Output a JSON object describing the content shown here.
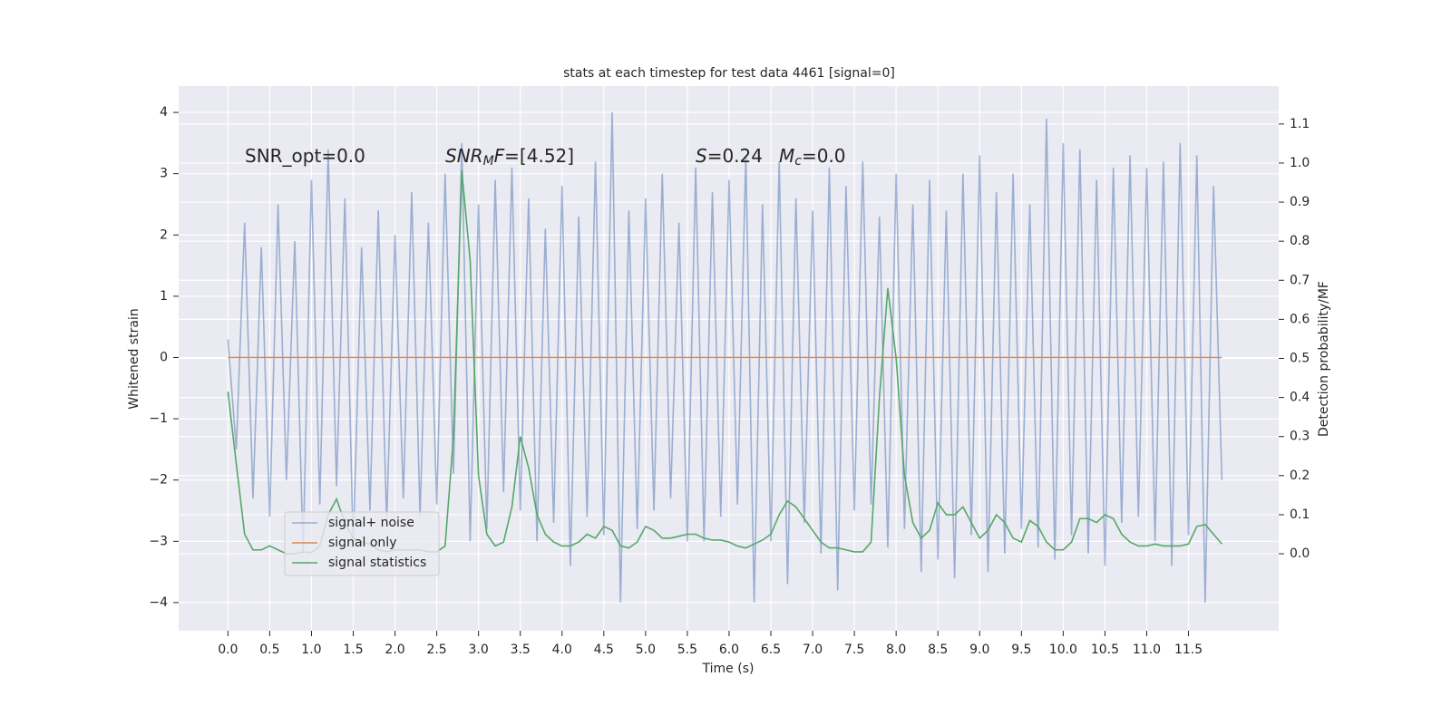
{
  "chart_data": {
    "type": "line",
    "title": "stats at each timestep for test data 4461 [signal=0]",
    "xlabel": "Time (s)",
    "ylabel": "Whitened strain",
    "y2label": "Detection probability/MF",
    "annotations": [
      [
        {
          "text": "SNR_opt=0.0"
        }
      ],
      [
        {
          "text": "SNR",
          "style": "italic"
        },
        {
          "text": "M",
          "style": "sub"
        },
        {
          "text": "F",
          "style": "italic"
        },
        {
          "text": "=[4.52]"
        }
      ],
      [
        {
          "text": "S",
          "style": "italic"
        },
        {
          "text": "=0.24"
        }
      ],
      [
        {
          "text": "M",
          "style": "italic"
        },
        {
          "text": "c",
          "style": "sub"
        },
        {
          "text": "=0.0"
        }
      ]
    ],
    "x": [
      0,
      0.1,
      0.2,
      0.3,
      0.4,
      0.5,
      0.6,
      0.7,
      0.8,
      0.9,
      1,
      1.1,
      1.2,
      1.3,
      1.4,
      1.5,
      1.6,
      1.7,
      1.8,
      1.9,
      2,
      2.1,
      2.2,
      2.3,
      2.4,
      2.5,
      2.6,
      2.7,
      2.8,
      2.9,
      3,
      3.1,
      3.2,
      3.3,
      3.4,
      3.5,
      3.6,
      3.7,
      3.8,
      3.9,
      4,
      4.1,
      4.2,
      4.3,
      4.4,
      4.5,
      4.6,
      4.7,
      4.8,
      4.9,
      5,
      5.1,
      5.2,
      5.3,
      5.4,
      5.5,
      5.6,
      5.7,
      5.8,
      5.9,
      6,
      6.1,
      6.2,
      6.3,
      6.4,
      6.5,
      6.6,
      6.7,
      6.8,
      6.9,
      7,
      7.1,
      7.2,
      7.3,
      7.4,
      7.5,
      7.6,
      7.7,
      7.8,
      7.9,
      8,
      8.1,
      8.2,
      8.3,
      8.4,
      8.5,
      8.6,
      8.7,
      8.8,
      8.9,
      9,
      9.1,
      9.2,
      9.3,
      9.4,
      9.5,
      9.6,
      9.7,
      9.8,
      9.9,
      10,
      10.1,
      10.2,
      10.3,
      10.4,
      10.5,
      10.6,
      10.7,
      10.8,
      10.9,
      11,
      11.1,
      11.2,
      11.3,
      11.4,
      11.5,
      11.6,
      11.7,
      11.8,
      11.9
    ],
    "series": [
      {
        "name": "signal+ noise",
        "color": "#4c72b0",
        "opacity": 0.5,
        "values": [
          0.3,
          -1.5,
          2.2,
          -2.3,
          1.8,
          -2.6,
          2.5,
          -2.0,
          1.9,
          -3.2,
          2.9,
          -2.4,
          3.4,
          -2.1,
          2.6,
          -3.1,
          1.8,
          -2.5,
          2.4,
          -2.7,
          2.0,
          -2.3,
          2.7,
          -2.6,
          2.2,
          -2.4,
          3.0,
          -1.9,
          3.5,
          -3.0,
          2.5,
          -2.8,
          2.9,
          -2.2,
          3.1,
          -2.5,
          2.6,
          -3.0,
          2.1,
          -2.7,
          2.8,
          -3.4,
          2.3,
          -2.6,
          3.2,
          -2.9,
          4.0,
          -4.0,
          2.4,
          -2.8,
          2.6,
          -2.5,
          3.0,
          -2.3,
          2.2,
          -3.0,
          3.1,
          -3.0,
          2.7,
          -2.6,
          2.9,
          -2.4,
          3.3,
          -4.0,
          2.5,
          -3.0,
          3.2,
          -3.7,
          2.6,
          -2.7,
          2.4,
          -3.2,
          3.1,
          -3.8,
          2.8,
          -2.5,
          3.2,
          -2.4,
          2.3,
          -3.1,
          3.0,
          -2.8,
          2.5,
          -3.5,
          2.9,
          -3.3,
          2.4,
          -3.6,
          3.0,
          -2.9,
          3.3,
          -3.5,
          2.7,
          -3.2,
          3.0,
          -2.8,
          2.5,
          -3.1,
          3.9,
          -3.3,
          3.5,
          -2.9,
          3.4,
          -3.2,
          2.9,
          -3.4,
          3.1,
          -2.7,
          3.3,
          -2.6,
          3.1,
          -3.0,
          3.2,
          -3.4,
          3.5,
          -2.9,
          3.3,
          -4.0,
          2.8,
          -2.0
        ]
      },
      {
        "name": "signal only",
        "color": "#dd8452",
        "opacity": 1,
        "values": [
          0,
          0,
          0,
          0,
          0,
          0,
          0,
          0,
          0,
          0,
          0,
          0,
          0,
          0,
          0,
          0,
          0,
          0,
          0,
          0,
          0,
          0,
          0,
          0,
          0,
          0,
          0,
          0,
          0,
          0,
          0,
          0,
          0,
          0,
          0,
          0,
          0,
          0,
          0,
          0,
          0,
          0,
          0,
          0,
          0,
          0,
          0,
          0,
          0,
          0,
          0,
          0,
          0,
          0,
          0,
          0,
          0,
          0,
          0,
          0,
          0,
          0,
          0,
          0,
          0,
          0,
          0,
          0,
          0,
          0,
          0,
          0,
          0,
          0,
          0,
          0,
          0,
          0,
          0,
          0,
          0,
          0,
          0,
          0,
          0,
          0,
          0,
          0,
          0,
          0,
          0,
          0,
          0,
          0,
          0,
          0,
          0,
          0,
          0,
          0,
          0,
          0,
          0,
          0,
          0,
          0,
          0,
          0,
          0,
          0,
          0,
          0,
          0,
          0,
          0,
          0,
          0,
          0,
          0,
          0
        ]
      },
      {
        "name": "signal statistics",
        "color": "#55a868",
        "opacity": 1,
        "axis": "y2",
        "values": [
          0.415,
          0.23,
          0.05,
          0.01,
          0.01,
          0.02,
          0.01,
          0,
          0,
          0.005,
          0.003,
          0.02,
          0.1,
          0.14,
          0.08,
          0.04,
          0.03,
          0.025,
          0.01,
          0.005,
          0.01,
          0.01,
          0.01,
          0.01,
          0.005,
          0.005,
          0.02,
          0.3,
          0.98,
          0.75,
          0.2,
          0.05,
          0.02,
          0.03,
          0.12,
          0.3,
          0.22,
          0.1,
          0.05,
          0.03,
          0.02,
          0.02,
          0.03,
          0.05,
          0.04,
          0.07,
          0.06,
          0.02,
          0.015,
          0.03,
          0.07,
          0.06,
          0.04,
          0.04,
          0.045,
          0.05,
          0.05,
          0.04,
          0.035,
          0.035,
          0.03,
          0.02,
          0.015,
          0.025,
          0.035,
          0.05,
          0.1,
          0.135,
          0.12,
          0.09,
          0.06,
          0.03,
          0.015,
          0.015,
          0.01,
          0.005,
          0.005,
          0.03,
          0.4,
          0.68,
          0.5,
          0.2,
          0.08,
          0.04,
          0.06,
          0.13,
          0.1,
          0.1,
          0.12,
          0.08,
          0.04,
          0.06,
          0.1,
          0.08,
          0.04,
          0.03,
          0.085,
          0.07,
          0.03,
          0.01,
          0.01,
          0.03,
          0.09,
          0.09,
          0.08,
          0.1,
          0.09,
          0.05,
          0.03,
          0.02,
          0.02,
          0.025,
          0.02,
          0.02,
          0.02,
          0.025,
          0.07,
          0.075,
          0.05,
          0.025
        ]
      }
    ],
    "xlim": [
      -0.59,
      12.58
    ],
    "xticks": [
      {
        "value": 0,
        "label": "0.0"
      },
      0.5,
      {
        "value": 1,
        "label": "1.0"
      },
      1.5,
      {
        "value": 2,
        "label": "2.0"
      },
      2.5,
      {
        "value": 3,
        "label": "3.0"
      },
      3.5,
      {
        "value": 4,
        "label": "4.0"
      },
      4.5,
      {
        "value": 5,
        "label": "5.0"
      },
      5.5,
      {
        "value": 6,
        "label": "6.0"
      },
      6.5,
      {
        "value": 7,
        "label": "7.0"
      },
      7.5,
      {
        "value": 8,
        "label": "8.0"
      },
      8.5,
      {
        "value": 9,
        "label": "9.0"
      },
      9.5,
      {
        "value": 10,
        "label": "10.0"
      },
      10.5,
      {
        "value": 11,
        "label": "11.0"
      },
      11.5
    ],
    "ylim": [
      -4.46,
      4.43
    ],
    "yticks": [
      {
        "value": -4,
        "label": "−4"
      },
      {
        "value": -3,
        "label": "−3"
      },
      {
        "value": -2,
        "label": "−2"
      },
      {
        "value": -1,
        "label": "−1"
      },
      0,
      1,
      2,
      3,
      4
    ],
    "y2lim": [
      -0.197,
      1.197
    ],
    "y2ticks": [
      {
        "value": 0,
        "label": "0.0"
      },
      0.1,
      0.2,
      0.3,
      0.4,
      0.5,
      0.6,
      0.7,
      0.8,
      0.9,
      {
        "value": 1,
        "label": "1.0"
      },
      1.1
    ],
    "grid": true,
    "legend": "lower left"
  }
}
